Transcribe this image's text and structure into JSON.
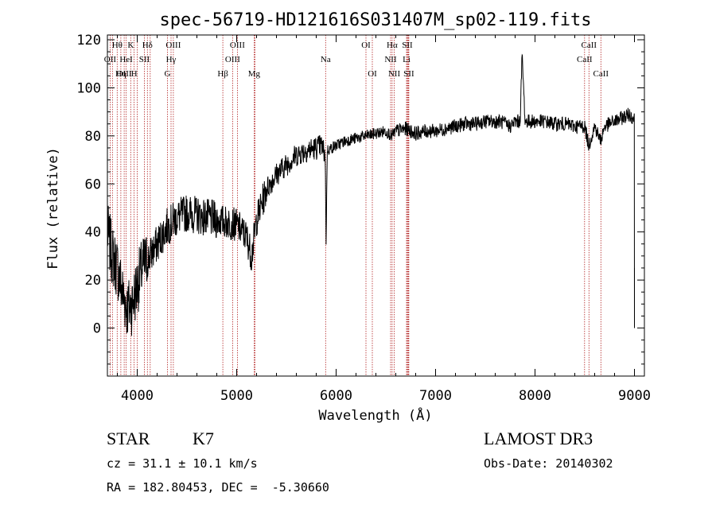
{
  "chart_data": {
    "type": "line",
    "title": "spec-56719-HD121616S031407M_sp02-119.fits",
    "xlabel": "Wavelength (Å)",
    "ylabel": "Flux (relative)",
    "xlim": [
      3700,
      9100
    ],
    "ylim": [
      -20,
      122
    ],
    "xticks": [
      4000,
      5000,
      6000,
      7000,
      8000,
      9000
    ],
    "xtick_labels": [
      "4000",
      "5000",
      "6000",
      "7000",
      "8000",
      "9000"
    ],
    "yticks": [
      0,
      20,
      40,
      60,
      80,
      100,
      120
    ],
    "ytick_labels": [
      "0",
      "20",
      "40",
      "60",
      "80",
      "100",
      "120"
    ],
    "grid": false,
    "series": [
      {
        "name": "spectrum",
        "color": "#000000",
        "x": [
          3700,
          3750,
          3800,
          3850,
          3900,
          3950,
          4000,
          4050,
          4100,
          4200,
          4300,
          4400,
          4500,
          4600,
          4700,
          4800,
          4900,
          5000,
          5100,
          5150,
          5200,
          5300,
          5400,
          5500,
          5600,
          5700,
          5800,
          5850,
          5890,
          5900,
          5910,
          6000,
          6100,
          6200,
          6300,
          6400,
          6500,
          6560,
          6600,
          6700,
          6800,
          6900,
          7000,
          7100,
          7200,
          7300,
          7400,
          7500,
          7600,
          7650,
          7700,
          7750,
          7800,
          7850,
          7870,
          7900,
          8000,
          8100,
          8200,
          8300,
          8400,
          8500,
          8540,
          8600,
          8660,
          8700,
          8800,
          8900,
          8950,
          9000
        ],
        "y": [
          40,
          30,
          25,
          15,
          8,
          10,
          18,
          25,
          28,
          35,
          42,
          46,
          48,
          47,
          46,
          45,
          44,
          43,
          38,
          30,
          45,
          58,
          64,
          68,
          72,
          74,
          75,
          76,
          72,
          35,
          74,
          76,
          78,
          79,
          80,
          81,
          82,
          80,
          82,
          83,
          81,
          82,
          82,
          83,
          84,
          85,
          85,
          86,
          86,
          86,
          85,
          84,
          86,
          86,
          114,
          86,
          86,
          86,
          85,
          85,
          84,
          84,
          76,
          84,
          78,
          84,
          86,
          88,
          89,
          87
        ]
      }
    ],
    "line_labels": [
      {
        "label": "Hθ",
        "wavelength": 3798,
        "row": 1
      },
      {
        "label": "OII",
        "wavelength": 3727,
        "row": 2
      },
      {
        "label": "OIII",
        "wavelength": 3869,
        "row": 3
      },
      {
        "label": "HeI",
        "wavelength": 3889,
        "row": 2
      },
      {
        "label": "K",
        "wavelength": 3934,
        "row": 1
      },
      {
        "label": "Hη",
        "wavelength": 3835,
        "row": 3
      },
      {
        "label": "SII",
        "wavelength": 4072,
        "row": 2
      },
      {
        "label": "H",
        "wavelength": 3969,
        "row": 3
      },
      {
        "label": "Hδ",
        "wavelength": 4102,
        "row": 1
      },
      {
        "label": "OIII",
        "wavelength": 4363,
        "row": 1
      },
      {
        "label": "Hγ",
        "wavelength": 4340,
        "row": 2
      },
      {
        "label": "G",
        "wavelength": 4304,
        "row": 3
      },
      {
        "label": "OIII",
        "wavelength": 5007,
        "row": 1
      },
      {
        "label": "OIII",
        "wavelength": 4959,
        "row": 2
      },
      {
        "label": "Hβ",
        "wavelength": 4861,
        "row": 3
      },
      {
        "label": "Mg",
        "wavelength": 5175,
        "row": 3
      },
      {
        "label": "Na",
        "wavelength": 5894,
        "row": 2
      },
      {
        "label": "OI",
        "wavelength": 6300,
        "row": 1
      },
      {
        "label": "OI",
        "wavelength": 6364,
        "row": 3
      },
      {
        "label": "Hα",
        "wavelength": 6563,
        "row": 1
      },
      {
        "label": "SII",
        "wavelength": 6716,
        "row": 1
      },
      {
        "label": "NII",
        "wavelength": 6548,
        "row": 2
      },
      {
        "label": "Li",
        "wavelength": 6708,
        "row": 2
      },
      {
        "label": "NII",
        "wavelength": 6584,
        "row": 3
      },
      {
        "label": "SII",
        "wavelength": 6731,
        "row": 3
      },
      {
        "label": "CaII",
        "wavelength": 8542,
        "row": 1
      },
      {
        "label": "CaII",
        "wavelength": 8498,
        "row": 2
      },
      {
        "label": "CaII",
        "wavelength": 8662,
        "row": 3
      }
    ],
    "extra_lines": [
      3750,
      4000,
      4130,
      5183,
      6717,
      6725
    ]
  },
  "info": {
    "object_class": "STAR",
    "subclass": "K7",
    "survey": "LAMOST DR3",
    "redshift_line": "cz = 31.1 ± 10.1 km/s",
    "obs_date_line": "Obs-Date: 20140302",
    "coord_line": "RA = 182.80453, DEC =  -5.30660"
  },
  "colors": {
    "line_marker": "#b22222",
    "spectrum": "#000000",
    "axis": "#000000"
  }
}
